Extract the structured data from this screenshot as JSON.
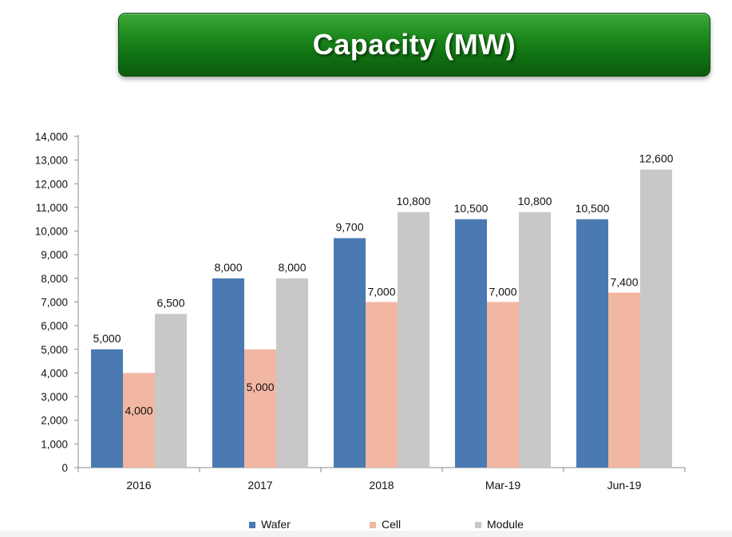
{
  "header": {
    "title": "Capacity (MW)"
  },
  "colors": {
    "wafer": "#4a7ab1",
    "cell": "#f2b7a2",
    "module": "#c8c8c8",
    "banner": "#1a7f1c"
  },
  "chart_data": {
    "type": "bar",
    "title": "Capacity (MW)",
    "xlabel": "",
    "ylabel": "",
    "ylim": [
      0,
      14000
    ],
    "yticks": [
      0,
      1000,
      2000,
      3000,
      4000,
      5000,
      6000,
      7000,
      8000,
      9000,
      10000,
      11000,
      12000,
      13000,
      14000
    ],
    "ytick_labels": [
      "0",
      "1,000",
      "2,000",
      "3,000",
      "4,000",
      "5,000",
      "6,000",
      "7,000",
      "8,000",
      "9,000",
      "10,000",
      "11,000",
      "12,000",
      "13,000",
      "14,000"
    ],
    "grid": false,
    "legend_position": "bottom",
    "categories": [
      "2016",
      "2017",
      "2018",
      "Mar-19",
      "Jun-19"
    ],
    "series": [
      {
        "name": "Wafer",
        "key": "wafer",
        "values": [
          5000,
          8000,
          9700,
          10500,
          10500
        ],
        "labels": [
          "5,000",
          "8,000",
          "9,700",
          "10,500",
          "10,500"
        ]
      },
      {
        "name": "Cell",
        "key": "cell",
        "values": [
          4000,
          5000,
          7000,
          7000,
          7400
        ],
        "labels": [
          "4,000",
          "5,000",
          "7,000",
          "7,000",
          "7,400"
        ]
      },
      {
        "name": "Module",
        "key": "module",
        "values": [
          6500,
          8000,
          10800,
          10800,
          12600
        ],
        "labels": [
          "6,500",
          "8,000",
          "10,800",
          "10,800",
          "12,600"
        ]
      }
    ]
  }
}
